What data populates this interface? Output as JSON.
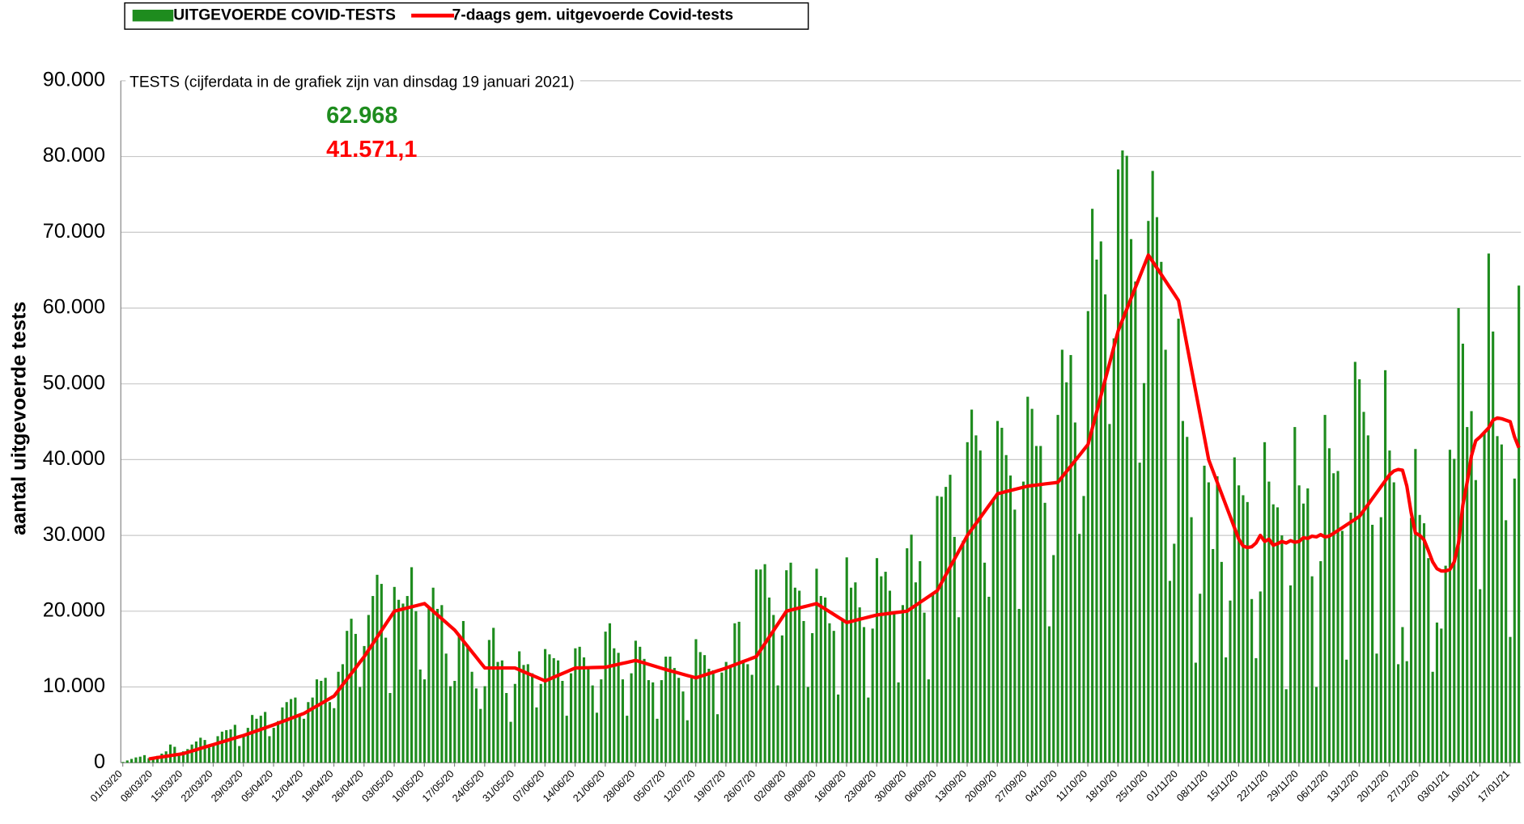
{
  "chart_data": {
    "type": "bar",
    "title": "TESTS (cijferdata in de grafiek zijn van dinsdag 19 januari 2021)",
    "y_label": "aantal uitgevoerde tests",
    "annotations": [
      {
        "text": "62.968",
        "color": "#1e8c1e"
      },
      {
        "text": "41.571,1",
        "color": "#ff0000"
      }
    ],
    "ylim": [
      0,
      90000
    ],
    "yticks": [
      0,
      {
        "value": 10000,
        "label": "10.000"
      },
      {
        "value": 20000,
        "label": "20.000"
      },
      {
        "value": 30000,
        "label": "30.000"
      },
      {
        "value": 40000,
        "label": "40.000"
      },
      {
        "value": 50000,
        "label": "50.000"
      },
      {
        "value": 60000,
        "label": "60.000"
      },
      {
        "value": 70000,
        "label": "70.000"
      },
      {
        "value": 80000,
        "label": "80.000"
      },
      {
        "value": 90000,
        "label": "90.000"
      }
    ],
    "grid": true,
    "legend": "top",
    "categories": [
      "01/03/20",
      null,
      null,
      null,
      null,
      null,
      null,
      "08/03/20",
      null,
      null,
      null,
      null,
      null,
      null,
      "15/03/20",
      null,
      null,
      null,
      null,
      null,
      null,
      "22/03/20",
      null,
      null,
      null,
      null,
      null,
      null,
      "29/03/20",
      null,
      null,
      null,
      null,
      null,
      null,
      "05/04/20",
      null,
      null,
      null,
      null,
      null,
      null,
      "12/04/20",
      null,
      null,
      null,
      null,
      null,
      null,
      "19/04/20",
      null,
      null,
      null,
      null,
      null,
      null,
      "26/04/20",
      null,
      null,
      null,
      null,
      null,
      null,
      "03/05/20",
      null,
      null,
      null,
      null,
      null,
      null,
      "10/05/20",
      null,
      null,
      null,
      null,
      null,
      null,
      "17/05/20",
      null,
      null,
      null,
      null,
      null,
      null,
      "24/05/20",
      null,
      null,
      null,
      null,
      null,
      null,
      "31/05/20",
      null,
      null,
      null,
      null,
      null,
      null,
      "07/06/20",
      null,
      null,
      null,
      null,
      null,
      null,
      "14/06/20",
      null,
      null,
      null,
      null,
      null,
      null,
      "21/06/20",
      null,
      null,
      null,
      null,
      null,
      null,
      "28/06/20",
      null,
      null,
      null,
      null,
      null,
      null,
      "05/07/20",
      null,
      null,
      null,
      null,
      null,
      null,
      "12/07/20",
      null,
      null,
      null,
      null,
      null,
      null,
      "19/07/20",
      null,
      null,
      null,
      null,
      null,
      null,
      "26/07/20",
      null,
      null,
      null,
      null,
      null,
      null,
      "02/08/20",
      null,
      null,
      null,
      null,
      null,
      null,
      "09/08/20",
      null,
      null,
      null,
      null,
      null,
      null,
      "16/08/20",
      null,
      null,
      null,
      null,
      null,
      null,
      "23/08/20",
      null,
      null,
      null,
      null,
      null,
      null,
      "30/08/20",
      null,
      null,
      null,
      null,
      null,
      null,
      "06/09/20",
      null,
      null,
      null,
      null,
      null,
      null,
      "13/09/20",
      null,
      null,
      null,
      null,
      null,
      null,
      "20/09/20",
      null,
      null,
      null,
      null,
      null,
      null,
      "27/09/20",
      null,
      null,
      null,
      null,
      null,
      null,
      "04/10/20",
      null,
      null,
      null,
      null,
      null,
      null,
      "11/10/20",
      null,
      null,
      null,
      null,
      null,
      null,
      "18/10/20",
      null,
      null,
      null,
      null,
      null,
      null,
      "25/10/20",
      null,
      null,
      null,
      null,
      null,
      null,
      "01/11/20",
      null,
      null,
      null,
      null,
      null,
      null,
      "08/11/20",
      null,
      null,
      null,
      null,
      null,
      null,
      "15/11/20",
      null,
      null,
      null,
      null,
      null,
      null,
      "22/11/20",
      null,
      null,
      null,
      null,
      null,
      null,
      "29/11/20",
      null,
      null,
      null,
      null,
      null,
      null,
      "06/12/20",
      null,
      null,
      null,
      null,
      null,
      null,
      "13/12/20",
      null,
      null,
      null,
      null,
      null,
      null,
      "20/12/20",
      null,
      null,
      null,
      null,
      null,
      null,
      "27/12/20",
      null,
      null,
      null,
      null,
      null,
      null,
      "03/01/21",
      null,
      null,
      null,
      null,
      null,
      null,
      "10/01/21",
      null,
      null,
      null,
      null,
      null,
      null,
      "17/01/21",
      null,
      null
    ],
    "series": [
      {
        "name": "UITGEVOERDE COVID-TESTS",
        "type": "bar",
        "color": "#1e8c1e",
        "values": [
          100,
          300,
          500,
          700,
          800,
          1000,
          600,
          700,
          900,
          1200,
          1500,
          2400,
          2100,
          1200,
          1500,
          1800,
          2400,
          2800,
          3300,
          3000,
          2000,
          2500,
          3500,
          4100,
          4300,
          4400,
          5000,
          2200,
          3500,
          4600,
          6300,
          5800,
          6200,
          6700,
          3500,
          4600,
          5500,
          7300,
          8000,
          8400,
          8600,
          6300,
          5800,
          8000,
          8600,
          11000,
          10800,
          11200,
          8000,
          7200,
          12000,
          13000,
          17400,
          19000,
          17000,
          10000,
          15400,
          19500,
          22000,
          24800,
          23600,
          16500,
          9200,
          23200,
          21500,
          21000,
          22000,
          25800,
          20000,
          12300,
          11000,
          20600,
          23100,
          20300,
          20800,
          14400,
          10100,
          10800,
          16800,
          18700,
          15500,
          12000,
          9800,
          7100,
          10100,
          16200,
          17800,
          13300,
          13500,
          9200,
          5400,
          10400,
          14700,
          12900,
          13000,
          11800,
          7300,
          10400,
          15000,
          14300,
          13800,
          13500,
          10800,
          6200,
          11800,
          15100,
          15300,
          13900,
          12500,
          10200,
          6600,
          11000,
          17300,
          18400,
          15100,
          14500,
          11000,
          6200,
          11800,
          16100,
          15300,
          13700,
          10900,
          10600,
          5800,
          10900,
          14000,
          14000,
          12500,
          11200,
          9400,
          5600,
          11500,
          16300,
          14600,
          14200,
          12400,
          12200,
          6400,
          11900,
          13300,
          12600,
          18400,
          18600,
          13500,
          13000,
          11600,
          25500,
          25500,
          26200,
          21800,
          19500,
          10200,
          16800,
          25400,
          26400,
          23100,
          22700,
          18700,
          10000,
          17100,
          25600,
          22000,
          21800,
          18400,
          17400,
          9000,
          18700,
          27100,
          23100,
          23800,
          20500,
          17900,
          8600,
          17700,
          27000,
          24600,
          25200,
          22700,
          19800,
          10600,
          20800,
          28300,
          30100,
          23800,
          26600,
          19800,
          11000,
          22400,
          35200,
          35100,
          36400,
          38000,
          29800,
          19200,
          29300,
          42300,
          46600,
          43200,
          41200,
          26400,
          21900,
          34800,
          45100,
          44200,
          40600,
          37900,
          33400,
          20300,
          37100,
          48300,
          46700,
          41800,
          41800,
          34300,
          18000,
          27400,
          45900,
          54500,
          50200,
          53800,
          44900,
          30200,
          35200,
          59600,
          73100,
          66400,
          68800,
          61800,
          44700,
          56000,
          78300,
          80800,
          80100,
          69100,
          63500,
          39600,
          50100,
          71500,
          78100,
          72000,
          66100,
          54500,
          24000,
          28900,
          58600,
          45100,
          43000,
          32400,
          13200,
          22300,
          39200,
          37000,
          28200,
          37800,
          26500,
          13900,
          21400,
          40300,
          36600,
          35300,
          34400,
          21600,
          13800,
          22600,
          42300,
          37100,
          34100,
          33700,
          30000,
          9700,
          23400,
          44300,
          36600,
          34200,
          36200,
          24600,
          10000,
          26600,
          45900,
          41500,
          38200,
          38500,
          30600,
          13600,
          33000,
          52900,
          50600,
          46300,
          43200,
          31400,
          14400,
          32400,
          51800,
          41200,
          37000,
          13000,
          17900,
          13400,
          32300,
          41400,
          32700,
          31600,
          27000,
          12000,
          18500,
          17700,
          26000,
          41300,
          40100,
          60000,
          55300,
          44300,
          46400,
          37300,
          22900,
          43700,
          67200,
          56900,
          43100,
          42000,
          32000,
          16600,
          37500,
          62968
        ]
      },
      {
        "name": "7-daags gem. uitgevoerde Covid-tests",
        "type": "line",
        "color": "#ff0000",
        "values": [
          null,
          null,
          null,
          null,
          null,
          null,
          500,
          590,
          680,
          760,
          850,
          940,
          1030,
          1110,
          1200,
          1370,
          1540,
          1710,
          1890,
          2060,
          2230,
          2400,
          2570,
          2740,
          2910,
          3090,
          3260,
          3430,
          3600,
          3800,
          4000,
          4200,
          4400,
          4600,
          4800,
          5000,
          5210,
          5430,
          5640,
          5860,
          6070,
          6290,
          6500,
          6830,
          7160,
          7490,
          7810,
          8140,
          8470,
          8800,
          9540,
          10290,
          11030,
          11770,
          12510,
          13260,
          14000,
          14860,
          15710,
          16570,
          17430,
          18290,
          19140,
          20000,
          20140,
          20290,
          20430,
          20570,
          20710,
          20860,
          21000,
          20500,
          20000,
          19500,
          19000,
          18500,
          18000,
          17500,
          16790,
          16070,
          15360,
          14640,
          13930,
          13210,
          12500,
          12500,
          12500,
          12500,
          12500,
          12500,
          12500,
          12500,
          12260,
          12010,
          11770,
          11530,
          11290,
          11040,
          10800,
          11040,
          11290,
          11530,
          11770,
          12010,
          12260,
          12500,
          12510,
          12530,
          12540,
          12560,
          12570,
          12590,
          12600,
          12730,
          12860,
          12990,
          13110,
          13240,
          13370,
          13500,
          13330,
          13160,
          12990,
          12810,
          12640,
          12470,
          12300,
          12140,
          11990,
          11830,
          11670,
          11510,
          11360,
          11200,
          11390,
          11570,
          11760,
          11940,
          12130,
          12310,
          12500,
          12710,
          12930,
          13140,
          13360,
          13570,
          13790,
          14000,
          14860,
          15710,
          16570,
          17430,
          18290,
          19140,
          20000,
          20140,
          20290,
          20430,
          20570,
          20710,
          20860,
          21000,
          20640,
          20290,
          19930,
          19570,
          19210,
          18860,
          18500,
          18640,
          18790,
          18930,
          19070,
          19210,
          19360,
          19500,
          19570,
          19640,
          19710,
          19790,
          19860,
          19930,
          20000,
          20390,
          20770,
          21160,
          21540,
          21930,
          22310,
          22700,
          23740,
          24790,
          25830,
          26870,
          27910,
          28960,
          30000,
          30790,
          31570,
          32360,
          33140,
          33930,
          34710,
          35500,
          35640,
          35790,
          35930,
          36070,
          36210,
          36360,
          36500,
          36570,
          36640,
          36710,
          36790,
          36860,
          36930,
          37000,
          37710,
          38430,
          39140,
          39860,
          40570,
          41290,
          42000,
          44140,
          46290,
          48430,
          50570,
          52710,
          54860,
          57000,
          58430,
          59860,
          61290,
          62710,
          64140,
          65570,
          67000,
          66140,
          65290,
          64430,
          63570,
          62710,
          61860,
          61000,
          58000,
          55000,
          52000,
          49000,
          46000,
          43000,
          40000,
          38500,
          37000,
          35500,
          34000,
          32500,
          31000,
          29500,
          28600,
          28400,
          28500,
          29000,
          30000,
          29200,
          29500,
          28700,
          28900,
          29200,
          29000,
          29300,
          29100,
          29200,
          29700,
          29600,
          29900,
          29800,
          30100,
          29800,
          29900,
          30270,
          30640,
          31010,
          31390,
          31760,
          32130,
          32500,
          33290,
          34070,
          34860,
          35640,
          36430,
          37210,
          38000,
          38500,
          38700,
          38600,
          36500,
          33000,
          30300,
          30000,
          29400,
          28000,
          26500,
          25600,
          25300,
          25300,
          25500,
          26500,
          29000,
          34000,
          37000,
          40500,
          42500,
          43000,
          43600,
          44200,
          45200,
          45500,
          45400,
          45200,
          45000,
          43000,
          41571.1
        ]
      }
    ]
  }
}
